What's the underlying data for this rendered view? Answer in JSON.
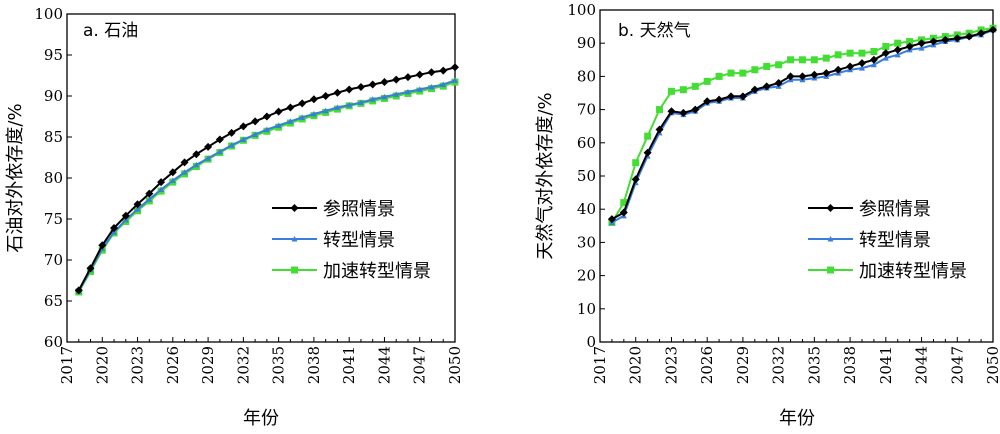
{
  "chart_data": [
    {
      "type": "line",
      "title": "a. 石油",
      "xlabel": "年份",
      "ylabel": "石油对外依存度/%",
      "xlim": [
        2017,
        2050
      ],
      "ylim": [
        60,
        100
      ],
      "xticks": [
        2017,
        2020,
        2023,
        2026,
        2029,
        2032,
        2035,
        2038,
        2041,
        2044,
        2047,
        2050
      ],
      "yticks": [
        60,
        65,
        70,
        75,
        80,
        85,
        90,
        95,
        100
      ],
      "legend_position": "right-middle",
      "grid": false,
      "x": [
        2018,
        2019,
        2020,
        2021,
        2022,
        2023,
        2024,
        2025,
        2026,
        2027,
        2028,
        2029,
        2030,
        2031,
        2032,
        2033,
        2034,
        2035,
        2036,
        2037,
        2038,
        2039,
        2040,
        2041,
        2042,
        2043,
        2044,
        2045,
        2046,
        2047,
        2048,
        2049,
        2050
      ],
      "series": [
        {
          "name": "参照情景",
          "color": "#000000",
          "marker": "diamond",
          "values": [
            66.3,
            69.0,
            71.8,
            73.9,
            75.4,
            76.8,
            78.1,
            79.5,
            80.7,
            81.9,
            82.9,
            83.8,
            84.7,
            85.5,
            86.3,
            86.9,
            87.5,
            88.1,
            88.6,
            89.1,
            89.6,
            90.0,
            90.4,
            90.8,
            91.1,
            91.4,
            91.7,
            92.0,
            92.3,
            92.6,
            92.9,
            93.1,
            93.5
          ]
        },
        {
          "name": "转型情景",
          "color": "#3a7ddb",
          "marker": "triangle",
          "values": [
            66.2,
            68.8,
            71.4,
            73.4,
            74.9,
            76.2,
            77.4,
            78.6,
            79.7,
            80.7,
            81.6,
            82.4,
            83.2,
            84.0,
            84.7,
            85.3,
            85.9,
            86.4,
            86.9,
            87.4,
            87.8,
            88.2,
            88.6,
            88.9,
            89.2,
            89.6,
            89.9,
            90.2,
            90.5,
            90.8,
            91.1,
            91.4,
            91.9
          ]
        },
        {
          "name": "加速转型情景",
          "color": "#44dd33",
          "marker": "square",
          "values": [
            66.1,
            68.6,
            71.2,
            73.3,
            74.7,
            76.0,
            77.2,
            78.4,
            79.5,
            80.5,
            81.4,
            82.3,
            83.1,
            83.9,
            84.6,
            85.2,
            85.7,
            86.2,
            86.7,
            87.2,
            87.6,
            88.0,
            88.4,
            88.8,
            89.1,
            89.4,
            89.7,
            90.0,
            90.3,
            90.6,
            90.9,
            91.2,
            91.7
          ]
        }
      ]
    },
    {
      "type": "line",
      "title": "b. 天然气",
      "xlabel": "年份",
      "ylabel": "天然气对外依存度/%",
      "xlim": [
        2017,
        2050
      ],
      "ylim": [
        0,
        100
      ],
      "xticks": [
        2017,
        2020,
        2023,
        2026,
        2029,
        2032,
        2035,
        2038,
        2041,
        2044,
        2047,
        2050
      ],
      "yticks": [
        0,
        10,
        20,
        30,
        40,
        50,
        60,
        70,
        80,
        90,
        100
      ],
      "legend_position": "right-middle",
      "grid": false,
      "x": [
        2018,
        2019,
        2020,
        2021,
        2022,
        2023,
        2024,
        2025,
        2026,
        2027,
        2028,
        2029,
        2030,
        2031,
        2032,
        2033,
        2034,
        2035,
        2036,
        2037,
        2038,
        2039,
        2040,
        2041,
        2042,
        2043,
        2044,
        2045,
        2046,
        2047,
        2048,
        2049,
        2050
      ],
      "series": [
        {
          "name": "参照情景",
          "color": "#000000",
          "marker": "diamond",
          "values": [
            37,
            39,
            49,
            57,
            64,
            69.5,
            69,
            70,
            72.5,
            73,
            74,
            74,
            76,
            77,
            78,
            80,
            80,
            80.5,
            81,
            82,
            83,
            84,
            85,
            87,
            88,
            89,
            90,
            90.5,
            91,
            91.5,
            92,
            93,
            94
          ]
        },
        {
          "name": "转型情景",
          "color": "#3a7ddb",
          "marker": "triangle",
          "values": [
            36,
            38,
            48,
            56,
            63,
            69,
            68.5,
            69.5,
            72,
            72.5,
            73.5,
            73.5,
            75.5,
            76.5,
            77,
            79,
            79,
            79.5,
            80,
            81,
            82,
            82.5,
            83.5,
            85.5,
            86.5,
            88,
            88.5,
            89.5,
            90.5,
            91,
            92,
            92.5,
            94
          ]
        },
        {
          "name": "加速转型情景",
          "color": "#44dd33",
          "marker": "square",
          "values": [
            36,
            42,
            54,
            62,
            70,
            75.5,
            76,
            77,
            78.5,
            80,
            81,
            81,
            82,
            83,
            83.5,
            85,
            85,
            85,
            85.5,
            86.5,
            87,
            87,
            87.5,
            89,
            90,
            90.5,
            91,
            91.5,
            92,
            92.5,
            93,
            94,
            94.5
          ]
        }
      ]
    }
  ]
}
